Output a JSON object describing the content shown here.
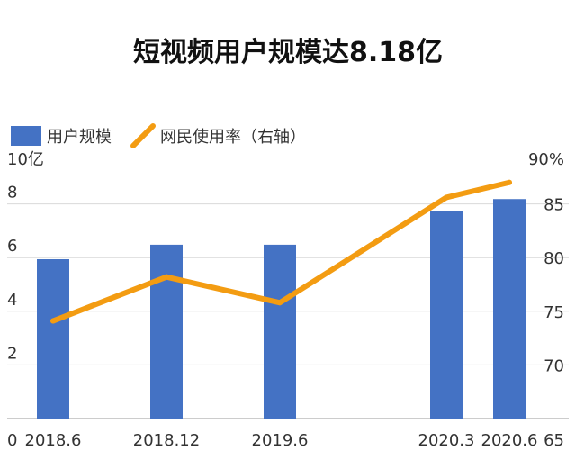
{
  "chart_data": {
    "type": "bar",
    "title": "短视频用户规模达8.18亿",
    "categories": [
      "2018.6",
      "2018.12",
      "2019.6",
      "2020.3",
      "2020.6"
    ],
    "series": [
      {
        "name": "用户规模",
        "type": "bar",
        "axis": "left",
        "values": [
          5.94,
          6.48,
          6.48,
          7.73,
          8.18
        ],
        "color": "#4472C4"
      },
      {
        "name": "网民使用率（右轴）",
        "type": "line",
        "axis": "right",
        "values": [
          74.1,
          78.2,
          75.8,
          85.6,
          87.0
        ],
        "color": "#F39C12"
      }
    ],
    "y_left": {
      "range": [
        0,
        10
      ],
      "ticks": [
        {
          "value": 0,
          "label": "0"
        },
        {
          "value": 2,
          "label": "2"
        },
        {
          "value": 4,
          "label": "4"
        },
        {
          "value": 6,
          "label": "6"
        },
        {
          "value": 8,
          "label": "8"
        },
        {
          "value": 10,
          "label": "10亿"
        }
      ]
    },
    "y_right": {
      "range": [
        65,
        90
      ],
      "ticks": [
        {
          "value": 65,
          "label": "65"
        },
        {
          "value": 70,
          "label": "70"
        },
        {
          "value": 75,
          "label": "75"
        },
        {
          "value": 80,
          "label": "80"
        },
        {
          "value": 85,
          "label": "85"
        },
        {
          "value": 90,
          "label": "90%"
        }
      ]
    },
    "grid": true,
    "legend_position": "top-left"
  }
}
